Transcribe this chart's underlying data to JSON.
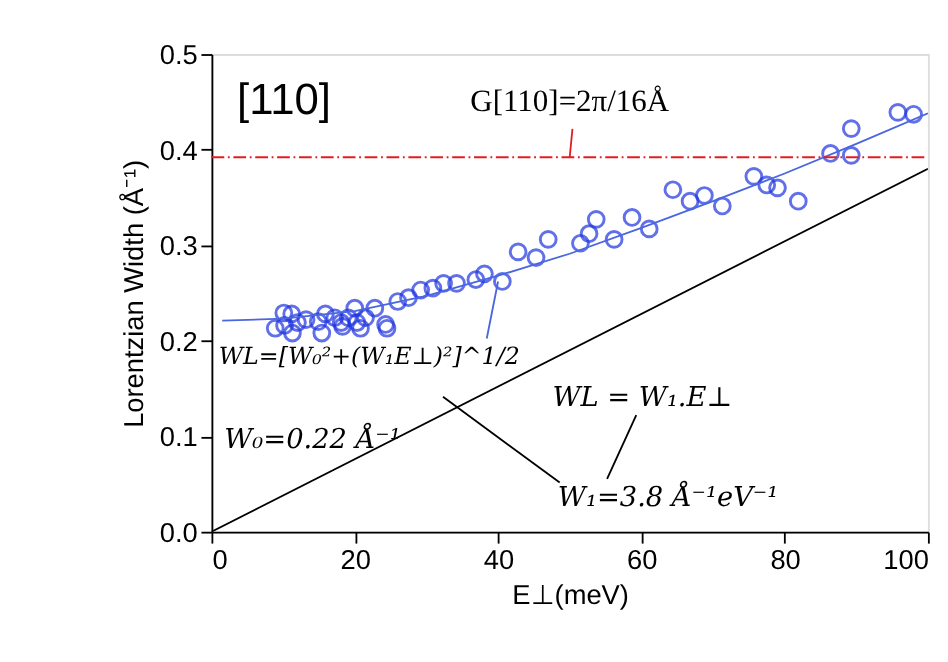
{
  "chart_data": {
    "type": "scatter",
    "xlabel": "E⊥(meV)",
    "ylabel": "Lorentzian Width (Å⁻¹)",
    "xlim": [
      0,
      100
    ],
    "ylim": [
      0,
      0.5
    ],
    "xticks": [
      0,
      20,
      40,
      60,
      80,
      100
    ],
    "yticks": [
      {
        "value": 0,
        "label": "0.0"
      },
      0.1,
      0.2,
      0.3,
      0.4,
      0.5
    ],
    "grid": false,
    "series": [
      {
        "marker": "circle",
        "color": "#1f35e0",
        "x": [
          8.9,
          10.1,
          10.2,
          11.2,
          11.3,
          12.0,
          13.2,
          14.9,
          15.4,
          15.9,
          17.2,
          18.1,
          18.3,
          19.1,
          20.0,
          20.3,
          20.8,
          21.5,
          22.8,
          24.3,
          24.5,
          26.0,
          27.5,
          29.2,
          30.9,
          32.4,
          34.2,
          36.9,
          38.1,
          40.6,
          42.8,
          45.3,
          47.0,
          51.5,
          52.7,
          53.7,
          56.2,
          58.7,
          61.1,
          64.4,
          66.8,
          68.8,
          71.3,
          75.7,
          77.5,
          79.0,
          81.9,
          86.4,
          89.3,
          89.3,
          95.8,
          98.0
        ],
        "values": [
          0.213,
          0.229,
          0.216,
          0.228,
          0.208,
          0.219,
          0.222,
          0.22,
          0.208,
          0.228,
          0.224,
          0.219,
          0.215,
          0.224,
          0.234,
          0.219,
          0.213,
          0.224,
          0.234,
          0.217,
          0.213,
          0.241,
          0.245,
          0.253,
          0.255,
          0.26,
          0.26,
          0.264,
          0.27,
          0.262,
          0.293,
          0.287,
          0.306,
          0.302,
          0.312,
          0.327,
          0.306,
          0.329,
          0.317,
          0.358,
          0.346,
          0.352,
          0.341,
          0.372,
          0.363,
          0.36,
          0.346,
          0.396,
          0.394,
          0.422,
          0.439,
          0.437
        ]
      },
      {
        "type": "line",
        "color": "#4a66e0",
        "x": [
          1.5,
          10,
          20,
          30,
          40,
          50,
          60,
          70,
          80,
          90,
          100
        ],
        "values": [
          0.221,
          0.223,
          0.231,
          0.247,
          0.268,
          0.291,
          0.318,
          0.346,
          0.375,
          0.406,
          0.438
        ]
      },
      {
        "type": "line",
        "color": "#000000",
        "x": [
          0,
          100
        ],
        "values": [
          0,
          0.38
        ]
      }
    ],
    "ref_lines": [
      {
        "axis": "y",
        "value": 0.392,
        "color": "#e02020",
        "line_style": "dashed"
      }
    ],
    "annotations": [
      "[110]",
      {
        "text": "G[110]=2π/16Å",
        "x": 50,
        "y": 0.392
      },
      {
        "text": "WL=[W₀²+(W₁E⊥)²]^1/2",
        "x": 40,
        "y": 0.262
      },
      "W₀=0.22 Å⁻¹",
      "WL = W₁.E⊥",
      "W₁=3.8 Å⁻¹eV⁻¹"
    ]
  }
}
